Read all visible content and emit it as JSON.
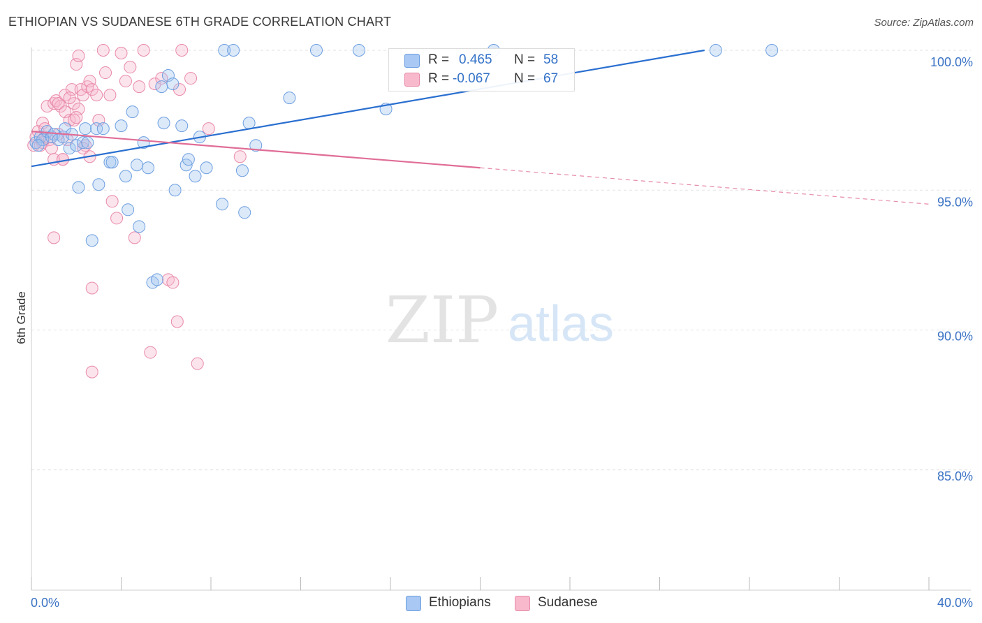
{
  "title": "ETHIOPIAN VS SUDANESE 6TH GRADE CORRELATION CHART",
  "source": "Source: ZipAtlas.com",
  "watermark": {
    "zip": "ZIP",
    "atlas": "atlas"
  },
  "legend": {
    "rows": [
      {
        "r_label": "R =",
        "r_value": "0.465",
        "n_label": "N =",
        "n_value": "58",
        "color": "#a9c8f3",
        "stroke": "#6b9ee0"
      },
      {
        "r_label": "R =",
        "r_value": "-0.067",
        "n_label": "N =",
        "n_value": "67",
        "color": "#f8b9cd",
        "stroke": "#e78aa8"
      }
    ]
  },
  "colors": {
    "ethiopians_fill": "rgba(160,196,240,0.38)",
    "ethiopians_stroke": "#6e9fe0",
    "ethiopians_line": "#2a6fd0",
    "sudanese_fill": "rgba(248,184,206,0.38)",
    "sudanese_stroke": "#e889ab",
    "sudanese_line": "#e06d97",
    "tick_label": "#3a72c4",
    "grid": "#e2e2e2"
  },
  "chart_data": {
    "type": "scatter",
    "title": "ETHIOPIAN VS SUDANESE 6TH GRADE CORRELATION CHART",
    "xlabel": "",
    "ylabel": "6th Grade",
    "xlim": [
      0,
      40
    ],
    "ylim": [
      80.7,
      100.3
    ],
    "x_tick_labels": [
      "0.0%",
      "40.0%"
    ],
    "y_ticks": [
      85,
      90,
      95,
      100
    ],
    "y_tick_labels": [
      "85.0%",
      "90.0%",
      "95.0%",
      "100.0%"
    ],
    "grid": "horizontal dashed",
    "series": [
      {
        "name": "Ethiopians",
        "R": 0.465,
        "N": 58,
        "trend": {
          "x": [
            0,
            30
          ],
          "y": [
            95.85,
            100.0
          ],
          "solid_to": 30
        },
        "points": [
          [
            0.2,
            96.7
          ],
          [
            0.4,
            96.9
          ],
          [
            0.5,
            96.8
          ],
          [
            0.7,
            97.1
          ],
          [
            0.9,
            96.9
          ],
          [
            1.0,
            97.0
          ],
          [
            1.2,
            96.8
          ],
          [
            1.4,
            96.9
          ],
          [
            1.5,
            97.2
          ],
          [
            1.7,
            96.5
          ],
          [
            1.8,
            97.0
          ],
          [
            2.0,
            96.6
          ],
          [
            2.1,
            95.1
          ],
          [
            2.3,
            96.7
          ],
          [
            2.4,
            97.2
          ],
          [
            2.5,
            96.7
          ],
          [
            2.7,
            93.2
          ],
          [
            2.9,
            97.2
          ],
          [
            3.0,
            95.2
          ],
          [
            3.2,
            97.2
          ],
          [
            3.5,
            96.0
          ],
          [
            3.6,
            96.0
          ],
          [
            4.0,
            97.3
          ],
          [
            4.2,
            95.5
          ],
          [
            4.3,
            94.3
          ],
          [
            4.5,
            97.8
          ],
          [
            4.7,
            95.9
          ],
          [
            4.8,
            93.7
          ],
          [
            5.0,
            96.7
          ],
          [
            5.2,
            95.8
          ],
          [
            5.4,
            91.7
          ],
          [
            5.6,
            91.8
          ],
          [
            5.8,
            98.7
          ],
          [
            5.9,
            97.4
          ],
          [
            6.1,
            99.1
          ],
          [
            6.3,
            98.8
          ],
          [
            6.4,
            95.0
          ],
          [
            6.7,
            97.3
          ],
          [
            6.9,
            95.9
          ],
          [
            7.0,
            96.1
          ],
          [
            7.3,
            95.5
          ],
          [
            7.5,
            96.9
          ],
          [
            7.8,
            95.8
          ],
          [
            8.5,
            94.5
          ],
          [
            8.6,
            100.0
          ],
          [
            9.0,
            100.0
          ],
          [
            9.4,
            95.7
          ],
          [
            9.5,
            94.2
          ],
          [
            9.7,
            97.4
          ],
          [
            10.0,
            96.6
          ],
          [
            11.5,
            98.3
          ],
          [
            12.7,
            100.0
          ],
          [
            14.6,
            100.0
          ],
          [
            15.8,
            97.9
          ],
          [
            20.6,
            100.0
          ],
          [
            30.5,
            100.0
          ],
          [
            33.0,
            100.0
          ],
          [
            0.3,
            96.6
          ]
        ]
      },
      {
        "name": "Sudanese",
        "R": -0.067,
        "N": 67,
        "trend": {
          "x": [
            0,
            40
          ],
          "y": [
            97.1,
            94.5
          ],
          "solid_to": 20
        },
        "points": [
          [
            0.1,
            96.6
          ],
          [
            0.2,
            96.9
          ],
          [
            0.3,
            97.1
          ],
          [
            0.4,
            96.6
          ],
          [
            0.5,
            96.7
          ],
          [
            0.5,
            97.4
          ],
          [
            0.6,
            96.9
          ],
          [
            0.7,
            98.0
          ],
          [
            0.8,
            96.8
          ],
          [
            0.9,
            96.5
          ],
          [
            1.0,
            96.1
          ],
          [
            1.0,
            98.1
          ],
          [
            1.1,
            98.2
          ],
          [
            1.2,
            97.0
          ],
          [
            1.3,
            98.0
          ],
          [
            1.4,
            96.1
          ],
          [
            1.5,
            97.8
          ],
          [
            1.5,
            98.4
          ],
          [
            1.6,
            96.8
          ],
          [
            1.7,
            97.5
          ],
          [
            1.8,
            98.6
          ],
          [
            1.9,
            98.1
          ],
          [
            1.9,
            97.5
          ],
          [
            2.0,
            99.5
          ],
          [
            2.1,
            99.8
          ],
          [
            2.1,
            97.9
          ],
          [
            2.2,
            98.6
          ],
          [
            2.3,
            98.4
          ],
          [
            2.4,
            96.6
          ],
          [
            2.5,
            98.7
          ],
          [
            2.6,
            98.9
          ],
          [
            2.6,
            96.2
          ],
          [
            2.7,
            98.6
          ],
          [
            2.9,
            98.4
          ],
          [
            3.0,
            97.5
          ],
          [
            3.2,
            100.0
          ],
          [
            3.3,
            99.2
          ],
          [
            3.5,
            98.4
          ],
          [
            3.6,
            94.6
          ],
          [
            3.8,
            94.0
          ],
          [
            4.0,
            99.9
          ],
          [
            4.2,
            98.9
          ],
          [
            4.4,
            99.4
          ],
          [
            4.6,
            93.3
          ],
          [
            4.8,
            98.7
          ],
          [
            5.0,
            100.0
          ],
          [
            5.3,
            89.2
          ],
          [
            5.5,
            98.8
          ],
          [
            5.8,
            99.0
          ],
          [
            6.1,
            91.8
          ],
          [
            6.3,
            91.7
          ],
          [
            6.5,
            90.3
          ],
          [
            6.6,
            98.6
          ],
          [
            6.7,
            100.0
          ],
          [
            7.1,
            99.0
          ],
          [
            7.4,
            88.8
          ],
          [
            7.9,
            97.2
          ],
          [
            9.3,
            96.2
          ],
          [
            1.0,
            93.3
          ],
          [
            2.3,
            96.5
          ],
          [
            2.7,
            91.5
          ],
          [
            2.7,
            88.5
          ],
          [
            1.4,
            96.1
          ],
          [
            1.7,
            98.3
          ],
          [
            0.6,
            97.2
          ],
          [
            2.0,
            97.6
          ],
          [
            1.2,
            98.1
          ]
        ]
      }
    ]
  },
  "bottom_legend": [
    "Ethiopians",
    "Sudanese"
  ]
}
